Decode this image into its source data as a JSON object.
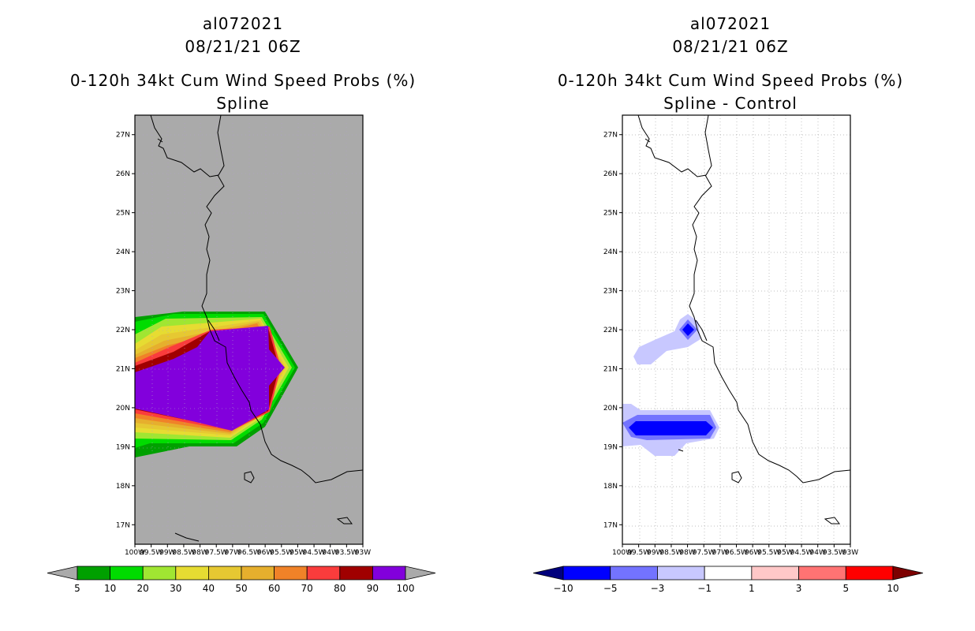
{
  "left_panel": {
    "storm_id": "al072021",
    "datetime": "08/21/21 06Z",
    "product": "0-120h 34kt Cum Wind Speed Probs (%)",
    "subtitle": "Spline"
  },
  "right_panel": {
    "storm_id": "al072021",
    "datetime": "08/21/21 06Z",
    "product": "0-120h 34kt Cum Wind Speed Probs (%)",
    "subtitle": "Spline - Control"
  },
  "chart_data": [
    {
      "type": "contour-map",
      "title": "0-120h 34kt Cum Wind Speed Probs (%) Spline",
      "lon_range": [
        -100,
        -93
      ],
      "lat_range": [
        16.5,
        27.5
      ],
      "lat_ticks": [
        "17N",
        "18N",
        "19N",
        "20N",
        "21N",
        "22N",
        "23N",
        "24N",
        "25N",
        "26N",
        "27N"
      ],
      "lon_ticks": [
        "100W",
        "99.5W",
        "99W",
        "98.5W",
        "98W",
        "97.5W",
        "97W",
        "96.5W",
        "96W",
        "95.5W",
        "95W",
        "94.5W",
        "94W",
        "93.5W",
        "93W"
      ],
      "background_color": "#aaaaaa",
      "colorbar": {
        "levels": [
          5,
          10,
          20,
          30,
          40,
          50,
          60,
          70,
          80,
          90,
          100
        ],
        "colors": [
          "#aaaaaa",
          "#00a000",
          "#00dc00",
          "#a0e632",
          "#e6dc32",
          "#e6c832",
          "#e6af2d",
          "#f08228",
          "#fa3c3c",
          "#a00000",
          "#8200dc",
          "#aaaaaa"
        ]
      },
      "features": [
        {
          "name": "probability > 90%",
          "color": "#8200dc",
          "lon": [
            -100,
            -95.3
          ],
          "lat": [
            19.6,
            22.2
          ],
          "peak_lon": -95.3
        }
      ]
    },
    {
      "type": "contour-map",
      "title": "0-120h 34kt Cum Wind Speed Probs (%) Spline - Control",
      "lon_range": [
        -100,
        -93
      ],
      "lat_range": [
        16.5,
        27.5
      ],
      "lat_ticks": [
        "17N",
        "18N",
        "19N",
        "20N",
        "21N",
        "22N",
        "23N",
        "24N",
        "25N",
        "26N",
        "27N"
      ],
      "lon_ticks": [
        "100W",
        "99.5W",
        "99W",
        "98.5W",
        "98W",
        "97.5W",
        "97W",
        "96.5W",
        "96W",
        "95.5W",
        "95W",
        "94.5W",
        "94W",
        "93.5W",
        "93W"
      ],
      "grid": true,
      "colorbar": {
        "levels": [
          -10,
          -5,
          -3,
          -1,
          1,
          3,
          5,
          10
        ],
        "colors": [
          "#00007d",
          "#0000ff",
          "#7373ff",
          "#c8c8ff",
          "#ffffff",
          "#ffc8c8",
          "#ff7373",
          "#ff0000",
          "#7d0000"
        ]
      },
      "features": [
        {
          "name": "difference -1 to -3 near 21.5N 99W",
          "value": -2
        },
        {
          "name": "difference < -10 near 22N 98W",
          "value": -10
        },
        {
          "name": "difference -5 to -10 near 19.5N 98.5W",
          "value": -7
        }
      ]
    }
  ]
}
